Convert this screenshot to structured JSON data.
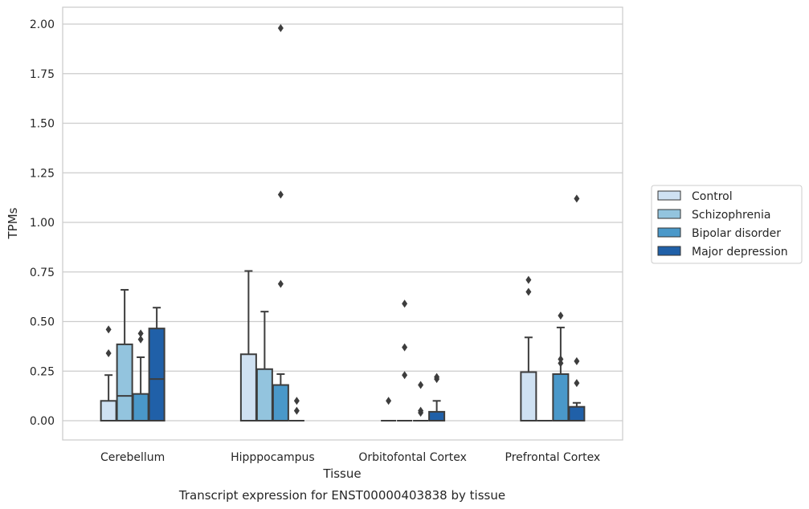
{
  "chart_data": {
    "type": "box",
    "caption": "Transcript expression for ENST00000403838 by tissue",
    "xlabel": "Tissue",
    "ylabel": "TPMs",
    "ylim": [
      -0.095,
      2.08
    ],
    "yticks": [
      "0.00",
      "0.25",
      "0.50",
      "0.75",
      "1.00",
      "1.25",
      "1.50",
      "1.75",
      "2.00"
    ],
    "grid": "horizontal",
    "legend_position": "right",
    "categories": [
      "Cerebellum",
      "Hipppocampus",
      "Orbitofontal Cortex",
      "Prefrontal Cortex"
    ],
    "series": [
      {
        "name": "Control",
        "color": "#cfe1f2",
        "boxes": [
          {
            "q1": 0,
            "median": 0,
            "q3": 0.1,
            "whisker_low": 0,
            "whisker_high": 0.23,
            "outliers": [
              0.34,
              0.46
            ]
          },
          {
            "q1": 0,
            "median": 0,
            "q3": 0.335,
            "whisker_low": 0,
            "whisker_high": 0.755,
            "outliers": []
          },
          {
            "q1": 0,
            "median": 0,
            "q3": 0,
            "whisker_low": 0,
            "whisker_high": 0,
            "outliers": [
              0.1
            ]
          },
          {
            "q1": 0,
            "median": 0,
            "q3": 0.245,
            "whisker_low": 0,
            "whisker_high": 0.42,
            "outliers": [
              0.65,
              0.71
            ]
          }
        ]
      },
      {
        "name": "Schizophrenia",
        "color": "#93c4de",
        "boxes": [
          {
            "q1": 0,
            "median": 0.125,
            "q3": 0.385,
            "whisker_low": 0,
            "whisker_high": 0.66,
            "outliers": []
          },
          {
            "q1": 0,
            "median": 0,
            "q3": 0.26,
            "whisker_low": 0,
            "whisker_high": 0.55,
            "outliers": []
          },
          {
            "q1": 0,
            "median": 0,
            "q3": 0,
            "whisker_low": 0,
            "whisker_high": 0,
            "outliers": [
              0.23,
              0.37,
              0.59
            ]
          },
          {
            "q1": 0,
            "median": 0,
            "q3": 0,
            "whisker_low": 0,
            "whisker_high": 0,
            "outliers": []
          }
        ]
      },
      {
        "name": "Bipolar disorder",
        "color": "#4a98c9",
        "boxes": [
          {
            "q1": 0,
            "median": 0,
            "q3": 0.135,
            "whisker_low": 0,
            "whisker_high": 0.32,
            "outliers": [
              0.41,
              0.44
            ]
          },
          {
            "q1": 0,
            "median": 0,
            "q3": 0.18,
            "whisker_low": 0,
            "whisker_high": 0.235,
            "outliers": [
              0.69,
              1.14,
              1.98
            ]
          },
          {
            "q1": 0,
            "median": 0,
            "q3": 0,
            "whisker_low": 0,
            "whisker_high": 0,
            "outliers": [
              0.04,
              0.05,
              0.18
            ]
          },
          {
            "q1": 0,
            "median": 0,
            "q3": 0.235,
            "whisker_low": 0,
            "whisker_high": 0.47,
            "outliers": [
              0.29,
              0.31,
              0.53
            ]
          }
        ]
      },
      {
        "name": "Major depression",
        "color": "#2060a8",
        "boxes": [
          {
            "q1": 0,
            "median": 0.21,
            "q3": 0.465,
            "whisker_low": 0,
            "whisker_high": 0.57,
            "outliers": []
          },
          {
            "q1": 0,
            "median": 0,
            "q3": 0,
            "whisker_low": 0,
            "whisker_high": 0,
            "outliers": [
              0.05,
              0.1
            ]
          },
          {
            "q1": 0,
            "median": 0,
            "q3": 0.045,
            "whisker_low": 0,
            "whisker_high": 0.1,
            "outliers": [
              0.21,
              0.22
            ]
          },
          {
            "q1": 0,
            "median": 0,
            "q3": 0.07,
            "whisker_low": 0,
            "whisker_high": 0.09,
            "outliers": [
              0.19,
              0.3,
              1.12
            ]
          }
        ]
      }
    ]
  }
}
